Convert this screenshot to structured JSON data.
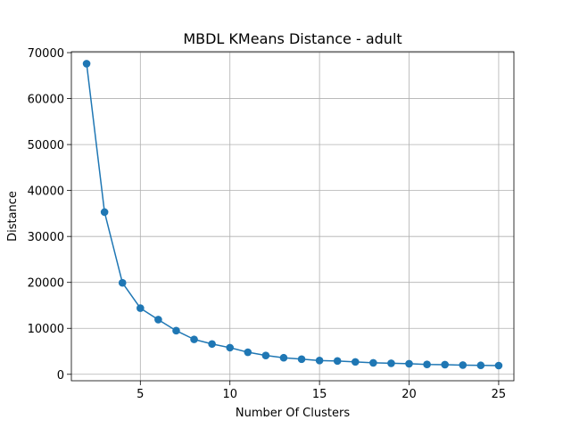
{
  "chart_data": {
    "type": "line",
    "title": "MBDL KMeans Distance - adult",
    "xlabel": "Number Of Clusters",
    "ylabel": "Distance",
    "xlim": [
      1.15,
      25.85
    ],
    "ylim": [
      -1400,
      70200
    ],
    "xticks": [
      5,
      10,
      15,
      20,
      25
    ],
    "yticks": [
      0,
      10000,
      20000,
      30000,
      40000,
      50000,
      60000,
      70000
    ],
    "grid": true,
    "color": "#1f77b4",
    "marker": "circle",
    "series": [
      {
        "x": [
          2,
          3,
          4,
          5,
          6,
          7,
          8,
          9,
          10,
          11,
          12,
          13,
          14,
          15,
          16,
          17,
          18,
          19,
          20,
          21,
          22,
          23,
          24,
          25
        ],
        "values": [
          67600,
          35300,
          19900,
          14400,
          11900,
          9500,
          7600,
          6600,
          5800,
          4800,
          4100,
          3600,
          3300,
          3000,
          2900,
          2700,
          2500,
          2400,
          2300,
          2150,
          2100,
          2000,
          1950,
          1900
        ]
      }
    ]
  }
}
